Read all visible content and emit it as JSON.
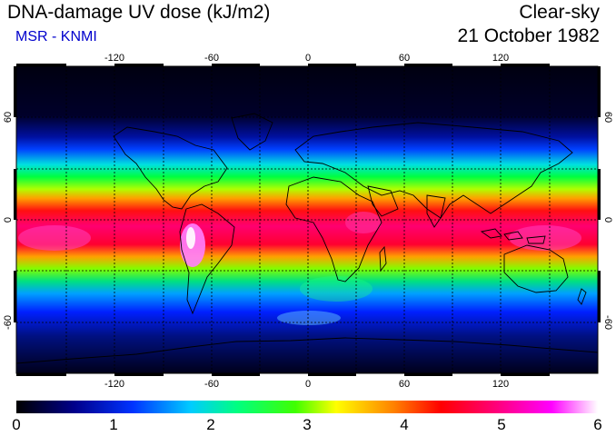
{
  "header": {
    "title": "DNA-damage UV dose (kJ/m2)",
    "subtitle": "MSR - KNMI",
    "sky": "Clear-sky",
    "date": "21 October 1982"
  },
  "map": {
    "lon_ticks": [
      "-120",
      "-60",
      "0",
      "60",
      "120"
    ],
    "lat_ticks": [
      "60",
      "0",
      "-60"
    ],
    "gridlines": true,
    "projection": "equirectangular"
  },
  "colorbar": {
    "labels": [
      "0",
      "1",
      "2",
      "3",
      "4",
      "5",
      "6"
    ],
    "colors": [
      "#000000",
      "#00008b",
      "#0033ff",
      "#00ffff",
      "#00ff00",
      "#ffff00",
      "#ff9900",
      "#ff0000",
      "#ff0080",
      "#ff00ff",
      "#ffffff"
    ]
  }
}
